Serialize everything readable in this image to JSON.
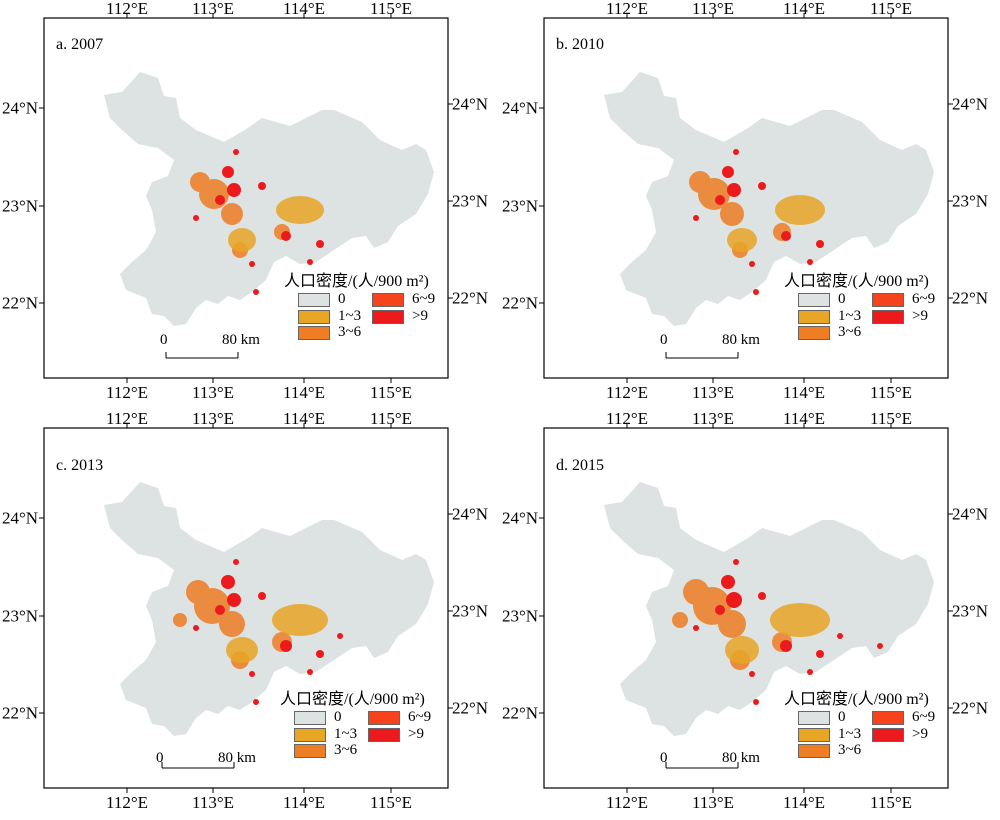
{
  "map": {
    "lon_labels": [
      "112°E",
      "113°E",
      "114°E",
      "115°E"
    ],
    "lat_labels_left": [
      "24°N",
      "23°N",
      "22°N"
    ],
    "lat_labels_right": [
      "24°N",
      "23°N",
      "22°N"
    ],
    "legend": {
      "title": "人口密度/(人/900 m²)",
      "classes": [
        {
          "label": "0",
          "color": "#dde2e2"
        },
        {
          "label": "1~3",
          "color": "#e8a526"
        },
        {
          "label": "3~6",
          "color": "#ee7d24"
        },
        {
          "label": "6~9",
          "color": "#f6431c"
        },
        {
          "label": ">9",
          "color": "#ec1a1c"
        }
      ]
    },
    "scale_bar": {
      "start": "0",
      "end": "80 km"
    },
    "land_color": "#dde2e2"
  },
  "panels": [
    {
      "label": "a. 2007"
    },
    {
      "label": "b. 2010"
    },
    {
      "label": "c. 2013"
    },
    {
      "label": "d. 2015"
    }
  ]
}
